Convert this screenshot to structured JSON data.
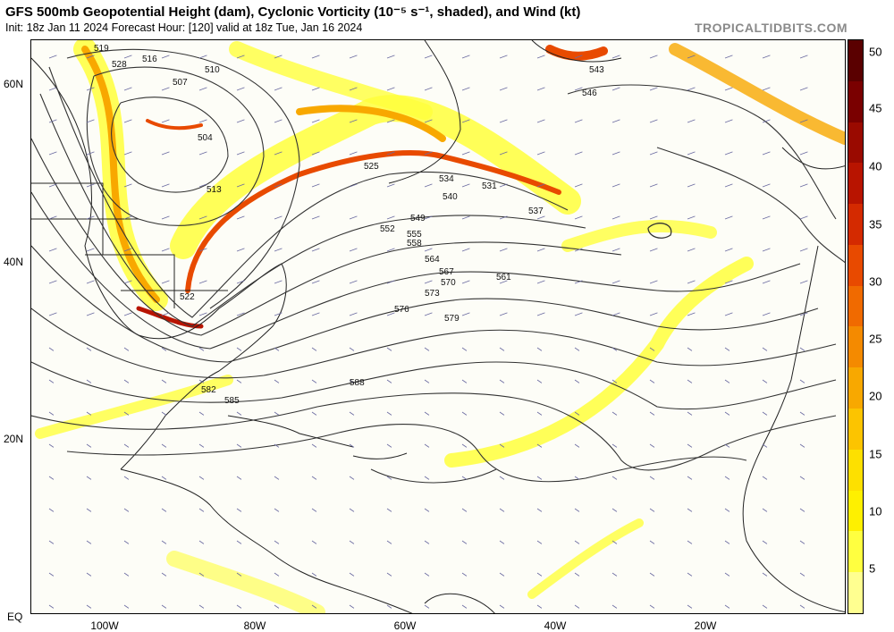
{
  "header": {
    "title": "GFS 500mb Geopotential Height (dam), Cyclonic Vorticity (10⁻⁵ s⁻¹, shaded), and Wind (kt)",
    "subtitle": "Init: 18z Jan 11 2024   Forecast Hour: [120]   valid at 18z Tue, Jan 16 2024",
    "brand": "TROPICALTIDBITS.COM"
  },
  "axes": {
    "lat_labels": [
      "60N",
      "40N",
      "20N",
      "EQ"
    ],
    "lon_labels": [
      "100W",
      "80W",
      "60W",
      "40W",
      "20W"
    ]
  },
  "colorbar": {
    "labels": [
      "50",
      "45",
      "40",
      "35",
      "30",
      "25",
      "20",
      "15",
      "10",
      "5"
    ],
    "colors": [
      "#5a0000",
      "#7a0000",
      "#9a0a00",
      "#b81400",
      "#d42a00",
      "#e84a00",
      "#f06a00",
      "#f48a00",
      "#f8a800",
      "#fcc400",
      "#fde000",
      "#fef000",
      "#ffff40",
      "#ffff90"
    ]
  },
  "map": {
    "height_labels": [
      {
        "text": "519"
      },
      {
        "text": "516"
      },
      {
        "text": "510"
      },
      {
        "text": "507"
      },
      {
        "text": "504"
      },
      {
        "text": "513"
      },
      {
        "text": "525"
      },
      {
        "text": "531"
      },
      {
        "text": "537"
      },
      {
        "text": "543"
      },
      {
        "text": "549"
      },
      {
        "text": "552"
      },
      {
        "text": "555"
      },
      {
        "text": "558"
      },
      {
        "text": "564"
      },
      {
        "text": "567"
      },
      {
        "text": "570"
      },
      {
        "text": "573"
      },
      {
        "text": "576"
      },
      {
        "text": "579"
      },
      {
        "text": "582"
      },
      {
        "text": "585"
      },
      {
        "text": "588"
      },
      {
        "text": "561"
      },
      {
        "text": "546"
      },
      {
        "text": "540"
      },
      {
        "text": "534"
      },
      {
        "text": "528"
      },
      {
        "text": "522"
      }
    ],
    "land_color": "#fdfdf7",
    "contour_color": "#333333",
    "vorticity_low": "#ffff3c",
    "vorticity_high": "#d42a00"
  }
}
